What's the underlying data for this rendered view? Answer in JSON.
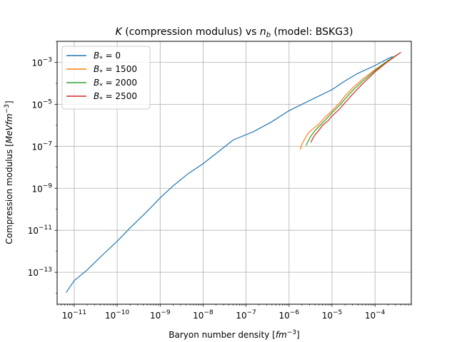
{
  "chart_data": {
    "type": "line",
    "title": "$K$ (compression modulus) vs $n_b$ (model: BSKG3)",
    "title_parts": {
      "k": "K",
      "middle": " (compression modulus) vs ",
      "n": "n",
      "sub": "b",
      "end": " (model: BSKG3)"
    },
    "xlabel": "Baryon number density [$fm^{-3}$]",
    "xlabel_parts": {
      "text": "Baryon number density [",
      "unit": "fm",
      "exp": "−3",
      "close": "]"
    },
    "ylabel": "Compression modulus [$MeV fm^{-3}$]",
    "ylabel_parts": {
      "text": "Compression modulus [",
      "unit": "MeVfm",
      "exp": "−3",
      "close": "]"
    },
    "xscale": "log",
    "yscale": "log",
    "xlim": [
      4e-12,
      0.0007
    ],
    "ylim": [
      3e-15,
      0.01
    ],
    "x_major_exponents": [
      -11,
      -10,
      -9,
      -8,
      -7,
      -6,
      -5,
      -4
    ],
    "y_major_exponents": [
      -13,
      -11,
      -9,
      -7,
      -5,
      -3
    ],
    "grid": true,
    "legend_position": "upper-left",
    "series": [
      {
        "name": "B* = 0",
        "label_symbol": "B",
        "label_sub": "*",
        "label_value": "= 0",
        "color": "#1f77b4",
        "x": [
          6.5e-12,
          1e-11,
          2e-11,
          5e-11,
          1e-10,
          2e-10,
          5e-10,
          1e-09,
          2e-09,
          4.5e-09,
          1e-08,
          2e-08,
          5e-08,
          1.5e-07,
          4e-07,
          1e-06,
          3e-06,
          1e-05,
          2e-05,
          4e-05,
          0.0001,
          0.0002,
          0.00026
        ],
        "y": [
          1.1e-14,
          4e-14,
          1.3e-13,
          8e-13,
          3e-12,
          1.3e-11,
          8e-11,
          3.5e-10,
          1.3e-09,
          5e-09,
          1.5e-08,
          4.5e-08,
          2e-07,
          5e-07,
          1.5e-06,
          5e-06,
          1.5e-05,
          5e-05,
          0.00013,
          0.0003,
          0.0007,
          0.0015,
          0.0019
        ]
      },
      {
        "name": "B* = 1500",
        "label_symbol": "B",
        "label_sub": "*",
        "label_value": "= 1500",
        "color": "#ff7f0e",
        "x": [
          1.8e-06,
          2e-06,
          2.5e-06,
          3e-06,
          4e-06,
          5e-06,
          7e-06,
          1e-05,
          1.5e-05,
          2e-05,
          3e-05,
          5e-05,
          0.0001,
          0.0002,
          0.00035
        ],
        "y": [
          7e-08,
          1.3e-07,
          3e-07,
          5e-07,
          8e-07,
          1.2e-06,
          2.5e-06,
          5e-06,
          1.2e-05,
          2.5e-05,
          6e-05,
          0.00015,
          0.00045,
          0.0012,
          0.0025
        ]
      },
      {
        "name": "B* = 2000",
        "label_symbol": "B",
        "label_sub": "*",
        "label_value": "= 2000",
        "color": "#2ca02c",
        "x": [
          2.5e-06,
          2.8e-06,
          3.2e-06,
          4e-06,
          5e-06,
          7e-06,
          1e-05,
          1.5e-05,
          2e-05,
          3e-05,
          5e-05,
          0.0001,
          0.0002,
          0.00035
        ],
        "y": [
          1.1e-07,
          1.8e-07,
          3e-07,
          5.5e-07,
          9e-07,
          1.8e-06,
          4e-06,
          9e-06,
          1.8e-05,
          4.5e-05,
          0.00012,
          0.0004,
          0.0012,
          0.0025
        ]
      },
      {
        "name": "B* = 2500",
        "label_symbol": "B",
        "label_sub": "*",
        "label_value": "= 2500",
        "color": "#d62728",
        "x": [
          3.2e-06,
          3.6e-06,
          4e-06,
          5e-06,
          6e-06,
          8e-06,
          1e-05,
          1.5e-05,
          2e-05,
          3e-05,
          5e-05,
          0.0001,
          0.0002,
          0.0004
        ],
        "y": [
          1.5e-07,
          2.5e-07,
          3.5e-07,
          6e-07,
          1e-06,
          1.6e-06,
          2.8e-06,
          6e-06,
          1.2e-05,
          3e-05,
          9e-05,
          0.00035,
          0.0011,
          0.003
        ]
      }
    ]
  }
}
